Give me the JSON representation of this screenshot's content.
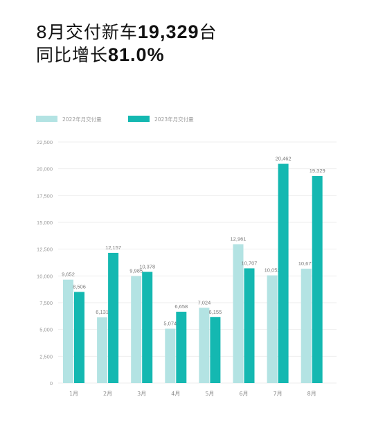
{
  "headline": {
    "line1_prefix": "8月交付新车",
    "line1_number": "19,329",
    "line1_suffix": "台",
    "line2_prefix": "同比增长",
    "line2_number": "81.0%"
  },
  "colors": {
    "series_2022": "#b3e3e3",
    "series_2023": "#14b8b1",
    "grid": "#eeeeee"
  },
  "chart_data": {
    "type": "bar",
    "categories": [
      "1月",
      "2月",
      "3月",
      "4月",
      "5月",
      "6月",
      "7月",
      "8月"
    ],
    "series": [
      {
        "name": "2022年月交付量",
        "values": [
          9652,
          6131,
          9985,
          5074,
          7024,
          12961,
          10052,
          10677
        ],
        "labels": [
          "9,652",
          "6,131",
          "9,985",
          "5,074",
          "7,024",
          "12,961",
          "10,052",
          "10,677"
        ]
      },
      {
        "name": "2023年月交付量",
        "values": [
          8506,
          12157,
          10378,
          6658,
          6155,
          10707,
          20462,
          19329
        ],
        "labels": [
          "8,506",
          "12,157",
          "10,378",
          "6,658",
          "6,155",
          "10,707",
          "20,462",
          "19,329"
        ]
      }
    ],
    "yticks": [
      0,
      2500,
      5000,
      7500,
      10000,
      12500,
      15000,
      17500,
      20000,
      22500
    ],
    "ytick_labels": [
      "0",
      "2,500",
      "5,000",
      "7,500",
      "10,000",
      "12,500",
      "15,000",
      "17,500",
      "20,000",
      "22,500"
    ],
    "ylim": [
      0,
      22500
    ],
    "grid": true,
    "legend_position": "top-left"
  }
}
